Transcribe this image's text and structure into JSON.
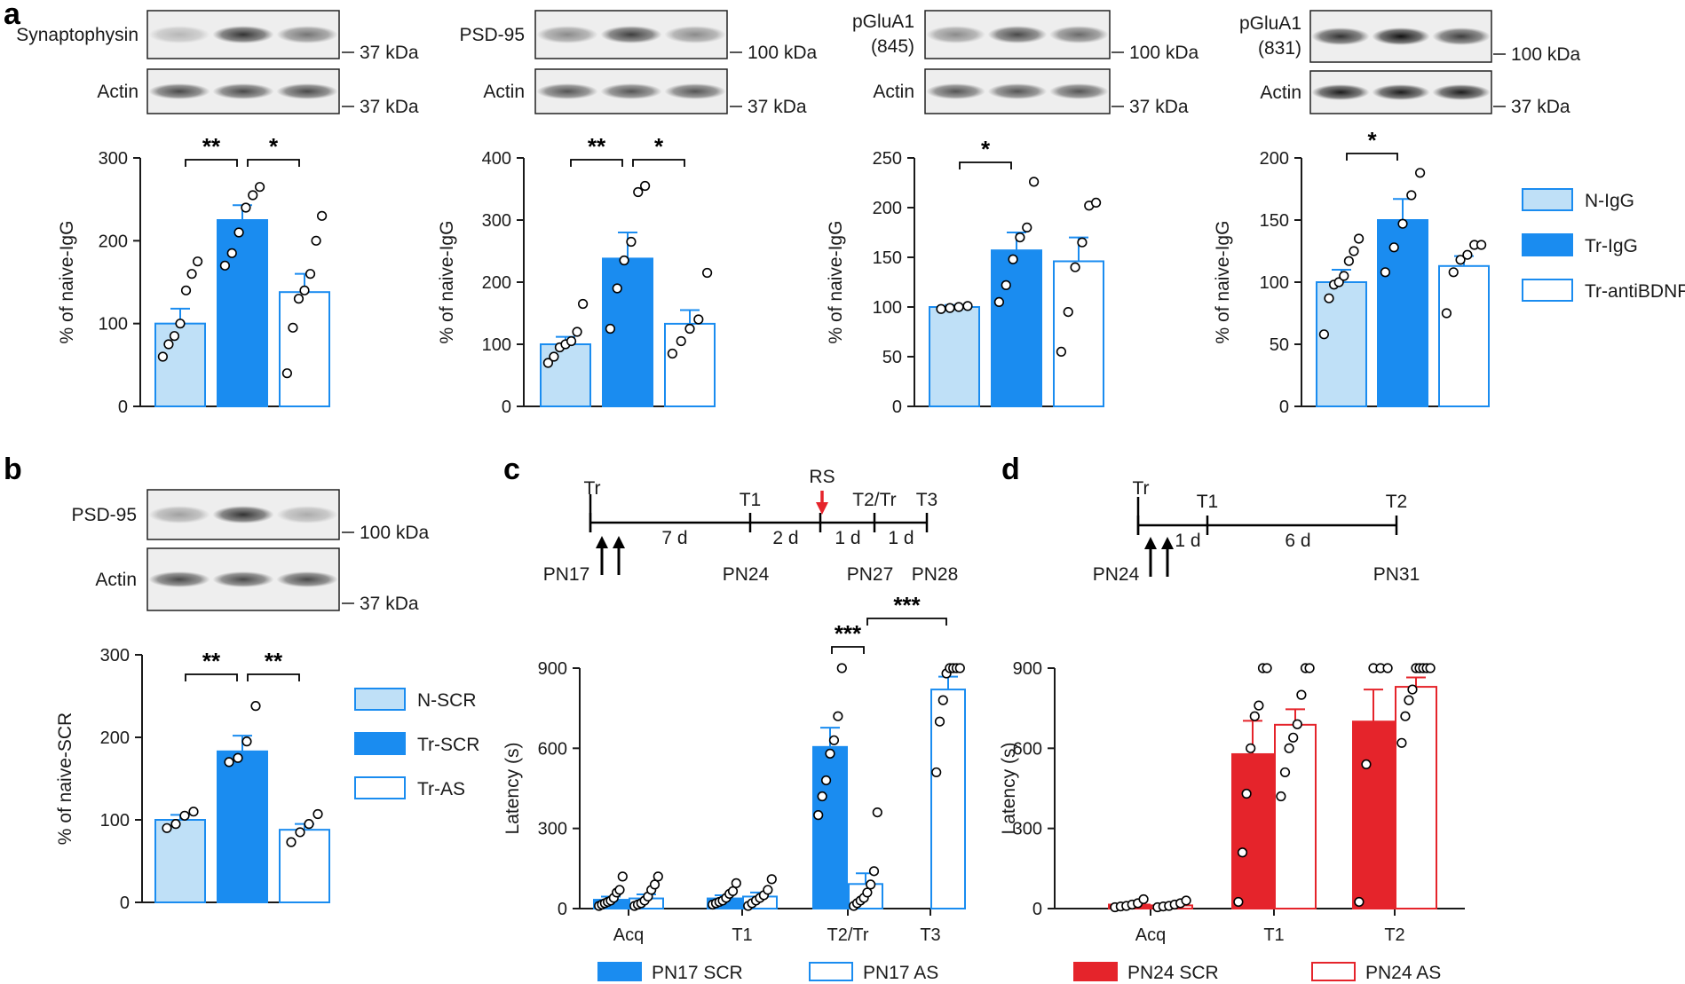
{
  "colors": {
    "naive_fill": "#bfe0f7",
    "blue": "#1a8cf0",
    "red": "#e5242b",
    "pn17_label": "#2a9df4",
    "pn24_label": "#e5242b",
    "axis": "#1a1a1a"
  },
  "panel_labels": [
    "a",
    "b",
    "c",
    "d"
  ],
  "blots": [
    {
      "row1_label": "Synaptophysin",
      "row1_kda": "37 kDa",
      "row2_label": "Actin",
      "row2_kda": "37 kDa",
      "band_intensity": [
        0.25,
        0.85,
        0.55
      ],
      "actin_intensity": [
        0.75,
        0.75,
        0.75
      ]
    },
    {
      "row1_label": "PSD-95",
      "row1_kda": "100 kDa",
      "row2_label": "Actin",
      "row2_kda": "37 kDa",
      "band_intensity": [
        0.45,
        0.8,
        0.45
      ],
      "actin_intensity": [
        0.7,
        0.7,
        0.7
      ]
    },
    {
      "row1_label": "pGluA1",
      "row1_label2": "(845)",
      "row1_kda": "100 kDa",
      "row2_label": "Actin",
      "row2_kda": "37 kDa",
      "band_intensity": [
        0.45,
        0.75,
        0.6
      ],
      "actin_intensity": [
        0.7,
        0.7,
        0.7
      ]
    },
    {
      "row1_label": "pGluA1",
      "row1_label2": "(831)",
      "row1_kda": "100 kDa",
      "row2_label": "Actin",
      "row2_kda": "37 kDa",
      "band_intensity": [
        0.85,
        1.0,
        0.8
      ],
      "actin_intensity": [
        0.95,
        0.95,
        0.95
      ]
    },
    {
      "row1_label": "PSD-95",
      "row1_kda": "100 kDa",
      "row2_label": "Actin",
      "row2_kda": "37 kDa",
      "band_intensity": [
        0.35,
        0.85,
        0.3
      ],
      "actin_intensity": [
        0.75,
        0.75,
        0.75
      ]
    }
  ],
  "chart_data": [
    {
      "id": "a1",
      "type": "bar",
      "ylabel": "% of naive-IgG",
      "ylim": [
        0,
        300
      ],
      "yticks": [
        0,
        100,
        200,
        300
      ],
      "categories": [
        "N-IgG",
        "Tr-IgG",
        "Tr-antiBDNF"
      ],
      "series": [
        {
          "values": [
            100,
            225,
            138
          ],
          "errors": [
            18,
            18,
            22
          ],
          "points": [
            [
              60,
              75,
              85,
              100,
              140,
              160,
              175
            ],
            [
              170,
              185,
              210,
              240,
              255,
              265
            ],
            [
              40,
              95,
              130,
              140,
              160,
              200,
              230
            ]
          ]
        }
      ],
      "significance": [
        {
          "pair": [
            0,
            1
          ],
          "label": "**"
        },
        {
          "pair": [
            1,
            2
          ],
          "label": "*"
        }
      ]
    },
    {
      "id": "a2",
      "type": "bar",
      "ylabel": "% of naive-IgG",
      "ylim": [
        0,
        400
      ],
      "yticks": [
        0,
        100,
        200,
        300,
        400
      ],
      "categories": [
        "N-IgG",
        "Tr-IgG",
        "Tr-antiBDNF"
      ],
      "series": [
        {
          "values": [
            100,
            238,
            133
          ],
          "errors": [
            12,
            42,
            22
          ],
          "points": [
            [
              70,
              80,
              95,
              100,
              105,
              120,
              165
            ],
            [
              125,
              190,
              235,
              265,
              345,
              355
            ],
            [
              85,
              105,
              125,
              140,
              215
            ]
          ]
        }
      ],
      "significance": [
        {
          "pair": [
            0,
            1
          ],
          "label": "**"
        },
        {
          "pair": [
            1,
            2
          ],
          "label": "*"
        }
      ]
    },
    {
      "id": "a3",
      "type": "bar",
      "ylabel": "% of naive-IgG",
      "ylim": [
        0,
        250
      ],
      "yticks": [
        0,
        50,
        100,
        150,
        200,
        250
      ],
      "categories": [
        "N-IgG",
        "Tr-IgG",
        "Tr-antiBDNF"
      ],
      "series": [
        {
          "values": [
            100,
            157,
            146
          ],
          "errors": [
            2,
            18,
            24
          ],
          "points": [
            [
              98,
              99,
              100,
              101
            ],
            [
              105,
              122,
              148,
              170,
              180,
              226
            ],
            [
              55,
              95,
              140,
              165,
              202,
              205
            ]
          ]
        }
      ],
      "significance": [
        {
          "pair": [
            0,
            1
          ],
          "label": "*"
        }
      ]
    },
    {
      "id": "a4",
      "type": "bar",
      "ylabel": "% of naive-IgG",
      "ylim": [
        0,
        200
      ],
      "yticks": [
        0,
        50,
        100,
        150,
        200
      ],
      "categories": [
        "N-IgG",
        "Tr-IgG",
        "Tr-antiBDNF"
      ],
      "series": [
        {
          "values": [
            100,
            150,
            113
          ],
          "errors": [
            10,
            17,
            8
          ],
          "points": [
            [
              58,
              87,
              98,
              100,
              105,
              117,
              125,
              135
            ],
            [
              108,
              128,
              147,
              170,
              188
            ],
            [
              75,
              108,
              118,
              122,
              130,
              130
            ]
          ]
        }
      ],
      "significance": [
        {
          "pair": [
            0,
            1
          ],
          "label": "*"
        }
      ],
      "legend": {
        "entries": [
          "N-IgG",
          "Tr-IgG",
          "Tr-antiBDNF"
        ],
        "position": "right"
      }
    },
    {
      "id": "b",
      "type": "bar",
      "ylabel": "% of naive-SCR",
      "ylim": [
        0,
        300
      ],
      "yticks": [
        0,
        100,
        200,
        300
      ],
      "categories": [
        "N-SCR",
        "Tr-SCR",
        "Tr-AS"
      ],
      "series": [
        {
          "values": [
            100,
            183,
            88
          ],
          "errors": [
            6,
            19,
            7
          ],
          "points": [
            [
              90,
              95,
              105,
              110
            ],
            [
              170,
              175,
              195,
              238
            ],
            [
              73,
              85,
              95,
              107
            ]
          ]
        }
      ],
      "significance": [
        {
          "pair": [
            0,
            1
          ],
          "label": "**"
        },
        {
          "pair": [
            1,
            2
          ],
          "label": "**"
        }
      ],
      "legend": {
        "entries": [
          "N-SCR",
          "Tr-SCR",
          "Tr-AS"
        ],
        "position": "right"
      }
    },
    {
      "id": "c",
      "type": "bar",
      "ylabel": "Latency (s)",
      "ylim": [
        0,
        900
      ],
      "yticks": [
        0,
        300,
        600,
        900
      ],
      "categories": [
        "Acq",
        "T1",
        "T2/Tr",
        "T3"
      ],
      "series": [
        {
          "name": "PN17 SCR",
          "values": [
            33,
            38,
            605,
            null
          ],
          "errors": [
            12,
            12,
            72,
            null
          ],
          "points": [
            [
              10,
              15,
              20,
              25,
              30,
              40,
              60,
              70,
              120
            ],
            [
              15,
              20,
              25,
              30,
              40,
              55,
              65,
              95
            ],
            [
              350,
              420,
              480,
              580,
              630,
              720,
              900
            ],
            []
          ]
        },
        {
          "name": "PN17 AS",
          "values": [
            38,
            45,
            92,
            820
          ],
          "errors": [
            15,
            15,
            40,
            48
          ],
          "points": [
            [
              10,
              15,
              20,
              30,
              45,
              70,
              90,
              120
            ],
            [
              10,
              20,
              30,
              40,
              50,
              70,
              110
            ],
            [
              10,
              20,
              30,
              40,
              60,
              90,
              140,
              360
            ],
            [
              510,
              700,
              780,
              880,
              900,
              900,
              900,
              900
            ]
          ]
        }
      ],
      "significance": [
        {
          "groups": [
            [
              2,
              0
            ],
            [
              2,
              1
            ]
          ],
          "label": "***"
        },
        {
          "groups": [
            [
              2,
              1
            ],
            [
              3,
              1
            ]
          ],
          "label": "***"
        }
      ],
      "legend": {
        "entries": [
          "PN17 SCR",
          "PN17 AS"
        ],
        "position": "bottom"
      },
      "timeline": {
        "labels_top": [
          "Tr",
          "T1",
          "RS",
          "T2/Tr",
          "T3"
        ],
        "intervals": [
          "7 d",
          "2 d",
          "1 d",
          "1 d"
        ],
        "labels_bottom": [
          "PN17",
          "PN24",
          "PN27",
          "PN28"
        ]
      }
    },
    {
      "id": "d",
      "type": "bar",
      "ylabel": "Latency (s)",
      "ylim": [
        0,
        900
      ],
      "yticks": [
        0,
        300,
        600,
        900
      ],
      "categories": [
        "Acq",
        "T1",
        "T2"
      ],
      "series": [
        {
          "name": "PN24 SCR",
          "values": [
            15,
            578,
            700
          ],
          "errors": [
            5,
            125,
            120
          ],
          "points": [
            [
              5,
              8,
              10,
              15,
              20,
              35
            ],
            [
              25,
              210,
              430,
              600,
              720,
              760,
              900,
              900
            ],
            [
              25,
              540,
              900,
              900,
              900
            ]
          ]
        },
        {
          "name": "PN24 AS",
          "values": [
            12,
            688,
            830
          ],
          "errors": [
            5,
            58,
            35
          ],
          "points": [
            [
              5,
              8,
              10,
              15,
              20,
              30
            ],
            [
              420,
              510,
              600,
              640,
              690,
              800,
              900,
              900
            ],
            [
              620,
              720,
              780,
              820,
              900,
              900,
              900,
              900,
              900
            ]
          ]
        }
      ],
      "legend": {
        "entries": [
          "PN24 SCR",
          "PN24 AS"
        ],
        "position": "bottom"
      },
      "timeline": {
        "labels_top": [
          "Tr",
          "T1",
          "T2"
        ],
        "intervals": [
          "1 d",
          "6 d"
        ],
        "labels_bottom": [
          "PN24",
          "PN31"
        ]
      }
    }
  ]
}
